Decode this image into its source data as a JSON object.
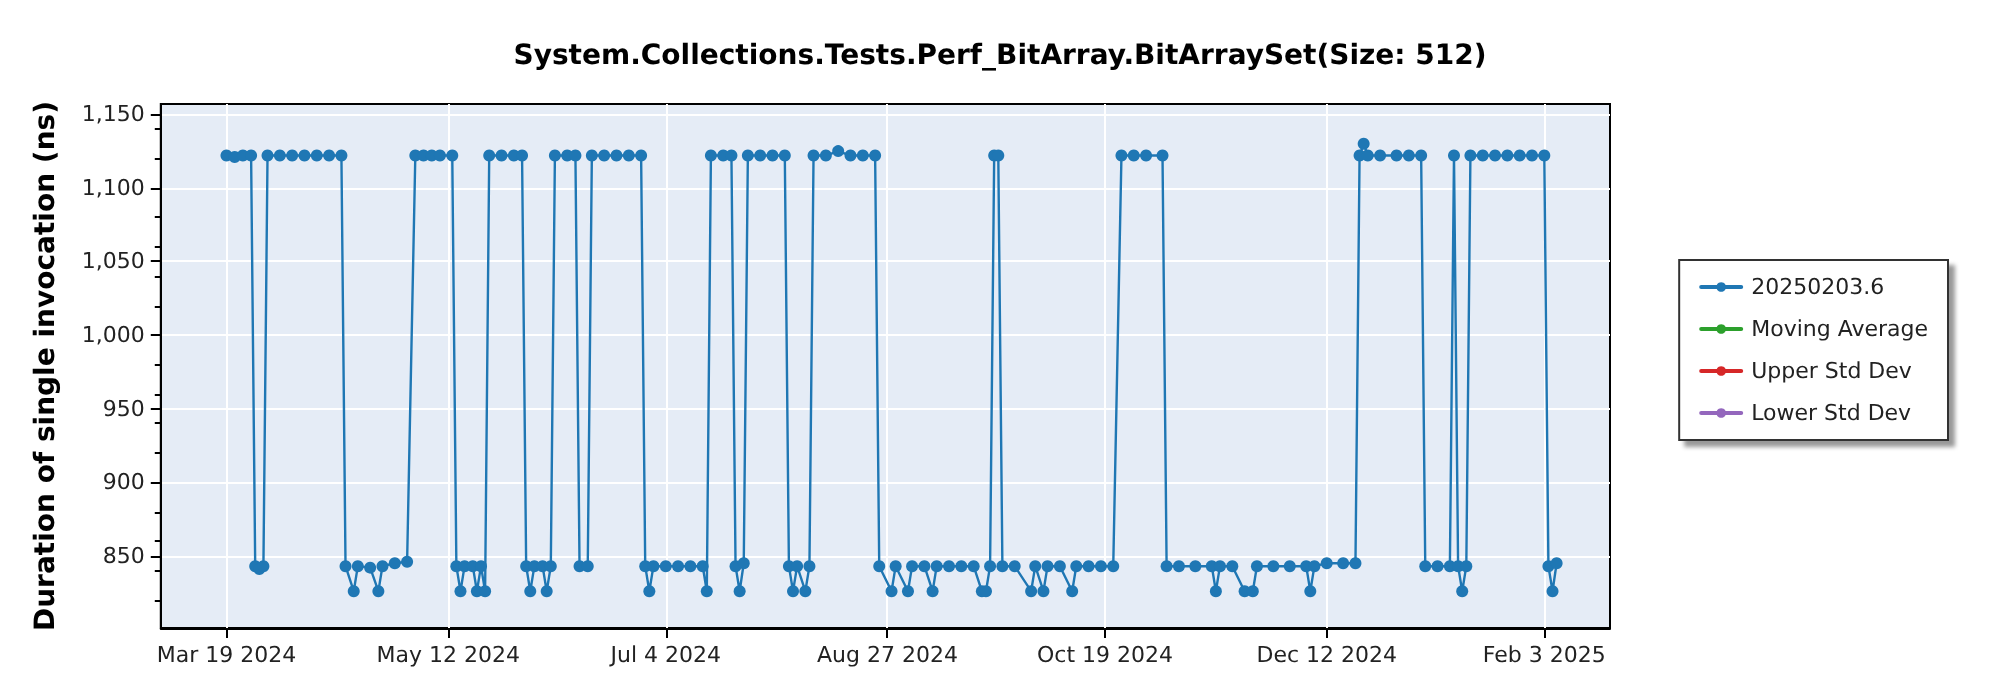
{
  "chart_data": {
    "type": "line",
    "title": "System.Collections.Tests.Perf_BitArray.BitArraySet(Size: 512)",
    "ylabel": "Duration of single invocation (ns)",
    "x": [
      "2024-03-19",
      "2024-03-21",
      "2024-03-23",
      "2024-03-25",
      "2024-03-26",
      "2024-03-27",
      "2024-03-28",
      "2024-03-29",
      "2024-04-01",
      "2024-04-04",
      "2024-04-07",
      "2024-04-10",
      "2024-04-13",
      "2024-04-16",
      "2024-04-17",
      "2024-04-19",
      "2024-04-20",
      "2024-04-23",
      "2024-04-25",
      "2024-04-26",
      "2024-04-29",
      "2024-05-02",
      "2024-05-04",
      "2024-05-06",
      "2024-05-08",
      "2024-05-10",
      "2024-05-13",
      "2024-05-14",
      "2024-05-15",
      "2024-05-16",
      "2024-05-18",
      "2024-05-19",
      "2024-05-20",
      "2024-05-21",
      "2024-05-22",
      "2024-05-25",
      "2024-05-28",
      "2024-05-30",
      "2024-05-31",
      "2024-06-01",
      "2024-06-02",
      "2024-06-04",
      "2024-06-05",
      "2024-06-06",
      "2024-06-07",
      "2024-06-10",
      "2024-06-12",
      "2024-06-13",
      "2024-06-15",
      "2024-06-16",
      "2024-06-19",
      "2024-06-22",
      "2024-06-25",
      "2024-06-28",
      "2024-06-29",
      "2024-06-30",
      "2024-07-01",
      "2024-07-04",
      "2024-07-07",
      "2024-07-10",
      "2024-07-13",
      "2024-07-14",
      "2024-07-15",
      "2024-07-18",
      "2024-07-20",
      "2024-07-21",
      "2024-07-22",
      "2024-07-23",
      "2024-07-24",
      "2024-07-27",
      "2024-07-30",
      "2024-08-02",
      "2024-08-03",
      "2024-08-04",
      "2024-08-05",
      "2024-08-07",
      "2024-08-08",
      "2024-08-09",
      "2024-08-12",
      "2024-08-15",
      "2024-08-18",
      "2024-08-21",
      "2024-08-24",
      "2024-08-25",
      "2024-08-28",
      "2024-08-29",
      "2024-09-01",
      "2024-09-02",
      "2024-09-05",
      "2024-09-07",
      "2024-09-08",
      "2024-09-11",
      "2024-09-14",
      "2024-09-17",
      "2024-09-19",
      "2024-09-20",
      "2024-09-21",
      "2024-09-22",
      "2024-09-23",
      "2024-09-24",
      "2024-09-27",
      "2024-10-01",
      "2024-10-02",
      "2024-10-04",
      "2024-10-05",
      "2024-10-08",
      "2024-10-11",
      "2024-10-12",
      "2024-10-15",
      "2024-10-18",
      "2024-10-21",
      "2024-10-23",
      "2024-10-26",
      "2024-10-29",
      "2024-11-02",
      "2024-11-03",
      "2024-11-06",
      "2024-11-10",
      "2024-11-14",
      "2024-11-15",
      "2024-11-16",
      "2024-11-19",
      "2024-11-22",
      "2024-11-24",
      "2024-11-25",
      "2024-11-29",
      "2024-12-03",
      "2024-12-07",
      "2024-12-08",
      "2024-12-09",
      "2024-12-12",
      "2024-12-16",
      "2024-12-19",
      "2024-12-20",
      "2024-12-21",
      "2024-12-22",
      "2024-12-25",
      "2024-12-29",
      "2025-01-01",
      "2025-01-04",
      "2025-01-05",
      "2025-01-08",
      "2025-01-11",
      "2025-01-12",
      "2025-01-13",
      "2025-01-14",
      "2025-01-15",
      "2025-01-16",
      "2025-01-19",
      "2025-01-22",
      "2025-01-25",
      "2025-01-28",
      "2025-01-31",
      "2025-02-03",
      "2025-02-04",
      "2025-02-05",
      "2025-02-06"
    ],
    "series": [
      {
        "name": "20250203.6",
        "color": "#1f77b4",
        "values": [
          1122,
          1121,
          1122,
          1122,
          843,
          841,
          843,
          1122,
          1122,
          1122,
          1122,
          1122,
          1122,
          1122,
          843,
          826,
          843,
          842,
          826,
          843,
          845,
          846,
          1122,
          1122,
          1122,
          1122,
          1122,
          843,
          826,
          843,
          843,
          826,
          843,
          826,
          1122,
          1122,
          1122,
          1122,
          843,
          826,
          843,
          843,
          826,
          843,
          1122,
          1122,
          1122,
          843,
          843,
          1122,
          1122,
          1122,
          1122,
          1122,
          843,
          826,
          843,
          843,
          843,
          843,
          843,
          826,
          1122,
          1122,
          1122,
          843,
          826,
          845,
          1122,
          1122,
          1122,
          1122,
          843,
          826,
          843,
          826,
          843,
          1122,
          1122,
          1125,
          1122,
          1122,
          1122,
          843,
          826,
          843,
          826,
          843,
          843,
          826,
          843,
          843,
          843,
          843,
          826,
          826,
          843,
          1122,
          1122,
          843,
          843,
          826,
          843,
          826,
          843,
          843,
          826,
          843,
          843,
          843,
          843,
          1122,
          1122,
          1122,
          1122,
          843,
          843,
          843,
          843,
          826,
          843,
          843,
          826,
          826,
          843,
          843,
          843,
          843,
          826,
          843,
          845,
          845,
          845,
          1122,
          1130,
          1122,
          1122,
          1122,
          1122,
          1122,
          843,
          843,
          843,
          1122,
          843,
          826,
          843,
          1122,
          1122,
          1122,
          1122,
          1122,
          1122,
          1122,
          843,
          826,
          845
        ]
      },
      {
        "name": "Moving Average",
        "color": "#2ca02c",
        "values": [
          null,
          null,
          null,
          null,
          null,
          null,
          null,
          null,
          null,
          null,
          null,
          null,
          null,
          null,
          null,
          null,
          null,
          null,
          null,
          null,
          null,
          null,
          null,
          null,
          null,
          null,
          null,
          null,
          null,
          null,
          null,
          null,
          null,
          null,
          null,
          null,
          null,
          null,
          null,
          null,
          null,
          null,
          null,
          null,
          null,
          null,
          null,
          null,
          null,
          null,
          null,
          null,
          null,
          null,
          null,
          null,
          null,
          null,
          null,
          null,
          null,
          null,
          null,
          null,
          null,
          null,
          null,
          null,
          null,
          null,
          null,
          null,
          null,
          null,
          null,
          null,
          null,
          null,
          null,
          null,
          null,
          null,
          null,
          null,
          null,
          null,
          null,
          null,
          null,
          null,
          null,
          null,
          null,
          null,
          null,
          null,
          null,
          null,
          null,
          null,
          null,
          null,
          null,
          null,
          null,
          null,
          null,
          null,
          null,
          null,
          null,
          null,
          null,
          null,
          null,
          null,
          null,
          null,
          null,
          null,
          null,
          null,
          null,
          null,
          null,
          null,
          null,
          null,
          null,
          null,
          null,
          null,
          null,
          null,
          null,
          null,
          null,
          null,
          null,
          null,
          null,
          null,
          null,
          null,
          null,
          null,
          null,
          null,
          null,
          null,
          null,
          null,
          null,
          null,
          null,
          null,
          null
        ]
      },
      {
        "name": "Upper Std Dev",
        "color": "#d62728",
        "values": [
          null,
          null,
          null,
          null,
          null,
          null,
          null,
          null,
          null,
          null,
          null,
          null,
          null,
          null,
          null,
          null,
          null,
          null,
          null,
          null,
          null,
          null,
          null,
          null,
          null,
          null,
          null,
          null,
          null,
          null,
          null,
          null,
          null,
          null,
          null,
          null,
          null,
          null,
          null,
          null,
          null,
          null,
          null,
          null,
          null,
          null,
          null,
          null,
          null,
          null,
          null,
          null,
          null,
          null,
          null,
          null,
          null,
          null,
          null,
          null,
          null,
          null,
          null,
          null,
          null,
          null,
          null,
          null,
          null,
          null,
          null,
          null,
          null,
          null,
          null,
          null,
          null,
          null,
          null,
          null,
          null,
          null,
          null,
          null,
          null,
          null,
          null,
          null,
          null,
          null,
          null,
          null,
          null,
          null,
          null,
          null,
          null,
          null,
          null,
          null,
          null,
          null,
          null,
          null,
          null,
          null,
          null,
          null,
          null,
          null,
          null,
          null,
          null,
          null,
          null,
          null,
          null,
          null,
          null,
          null,
          null,
          null,
          null,
          null,
          null,
          null,
          null,
          null,
          null,
          null,
          null,
          null,
          null,
          null,
          null,
          null,
          null,
          null,
          null,
          null,
          null,
          null,
          null,
          null,
          null,
          null,
          null,
          null,
          null,
          null,
          null,
          null,
          null,
          null,
          null,
          null,
          null
        ]
      },
      {
        "name": "Lower Std Dev",
        "color": "#9467bd",
        "values": [
          null,
          null,
          null,
          null,
          null,
          null,
          null,
          null,
          null,
          null,
          null,
          null,
          null,
          null,
          null,
          null,
          null,
          null,
          null,
          null,
          null,
          null,
          null,
          null,
          null,
          null,
          null,
          null,
          null,
          null,
          null,
          null,
          null,
          null,
          null,
          null,
          null,
          null,
          null,
          null,
          null,
          null,
          null,
          null,
          null,
          null,
          null,
          null,
          null,
          null,
          null,
          null,
          null,
          null,
          null,
          null,
          null,
          null,
          null,
          null,
          null,
          null,
          null,
          null,
          null,
          null,
          null,
          null,
          null,
          null,
          null,
          null,
          null,
          null,
          null,
          null,
          null,
          null,
          null,
          null,
          null,
          null,
          null,
          null,
          null,
          null,
          null,
          null,
          null,
          null,
          null,
          null,
          null,
          null,
          null,
          null,
          null,
          null,
          null,
          null,
          null,
          null,
          null,
          null,
          null,
          null,
          null,
          null,
          null,
          null,
          null,
          null,
          null,
          null,
          null,
          null,
          null,
          null,
          null,
          null,
          null,
          null,
          null,
          null,
          null,
          null,
          null,
          null,
          null,
          null,
          null,
          null,
          null,
          null,
          null,
          null,
          null,
          null,
          null,
          null,
          null,
          null,
          null,
          null,
          null,
          null,
          null,
          null,
          null,
          null,
          null,
          null,
          null,
          null,
          null,
          null,
          null
        ]
      }
    ],
    "xlim": [
      "2024-03-03",
      "2025-02-19"
    ],
    "xticks": [
      {
        "value": "2024-03-19",
        "label": "Mar 19 2024"
      },
      {
        "value": "2024-05-12",
        "label": "May 12 2024"
      },
      {
        "value": "2024-07-04",
        "label": "Jul 4 2024"
      },
      {
        "value": "2024-08-27",
        "label": "Aug 27 2024"
      },
      {
        "value": "2024-10-19",
        "label": "Oct 19 2024"
      },
      {
        "value": "2024-12-12",
        "label": "Dec 12 2024"
      },
      {
        "value": "2025-02-03",
        "label": "Feb 3 2025"
      }
    ],
    "ylim": [
      801,
      1157
    ],
    "yticks": [
      850,
      900,
      950,
      {
        "value": 1000,
        "label": "1,000"
      },
      {
        "value": 1050,
        "label": "1,050"
      },
      {
        "value": 1100,
        "label": "1,100"
      },
      {
        "value": 1150,
        "label": "1,150"
      }
    ],
    "grid": true,
    "legend": "right",
    "marker": "circle",
    "line_style": "solid"
  }
}
